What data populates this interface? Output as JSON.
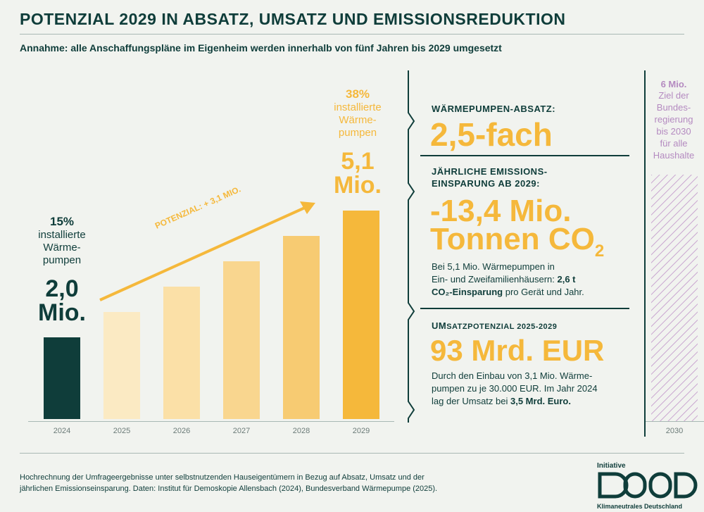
{
  "header": {
    "title": "POTENZIAL 2029 IN ABSATZ, UMSATZ UND EMISSIONSREDUKTION",
    "subtitle": "Annahme: alle Anschaffungspläne im Eigenheim werden innerhalb von fünf Jahren bis 2029 umgesetzt"
  },
  "chart_data": {
    "type": "bar",
    "categories": [
      "2024",
      "2025",
      "2026",
      "2027",
      "2028",
      "2029"
    ],
    "values": [
      2.0,
      2.62,
      3.24,
      3.86,
      4.48,
      5.1
    ],
    "unit": "Mio.",
    "ylim": [
      0,
      5.1
    ],
    "target_category": "2030",
    "target_value": 6,
    "arrow_label": "POTENZIAL: + 3,1 MIO.",
    "start_annotation": {
      "pct": "15%",
      "desc_lines": [
        "installierte",
        "Wärme-",
        "pumpen"
      ],
      "value": "2,0",
      "unit": "Mio."
    },
    "end_annotation": {
      "pct": "38%",
      "desc_lines": [
        "installierte",
        "Wärme-",
        "pumpen"
      ],
      "value": "5,1",
      "unit": "Mio."
    },
    "target_annotation": {
      "value": "6 Mio.",
      "desc_lines": [
        "Ziel der",
        "Bundes-",
        "regierung",
        "bis 2030",
        "für alle",
        "Haushalte"
      ]
    },
    "colors": {
      "bar_2024": "#0f3d3a",
      "bars_gradient": [
        "#fbeac3",
        "#fbe0a7",
        "#f9d68f",
        "#f7cb72",
        "#f5b83b"
      ],
      "target_hatch": "#c9a6d0",
      "target_text": "#b48ac0"
    }
  },
  "side": {
    "absatz": {
      "head": "WÄRMEPUMPEN-ABSATZ:",
      "value": "2,5-fach"
    },
    "emission": {
      "head_lines": [
        "JÄHRLICHE EMISSIONS-",
        "EINSPARUNG AB 2029:"
      ],
      "value_line1": "-13,4 Mio.",
      "value_line2": "Tonnen CO",
      "value_sub": "2",
      "text_line1": "Bei 5,1 Mio. Wärmepumpen in",
      "text_line2_pre": "Ein- und Zweifamilienhäusern: ",
      "text_line2_bold": "2,6 t",
      "text_line3_bold": "CO₂-Einsparung",
      "text_line3_post": " pro Gerät und Jahr."
    },
    "umsatz": {
      "head_pre": "UM",
      "head_post": "SATZPOTENZIAL 2025-2029",
      "value": "93 Mrd. EUR",
      "text_line1": "Durch den Einbau von 3,1 Mio. Wärme-",
      "text_line2": "pumpen zu je 30.000 EUR. Im Jahr 2024",
      "text_line3_pre": "lag der Umsatz bei ",
      "text_line3_bold": "3,5 Mrd. Euro."
    }
  },
  "footer": {
    "line1": "Hochrechnung der Umfrageergebnisse unter selbstnutzenden Hauseigentümern in Bezug auf Absatz, Umsatz und der",
    "line2": "jährlichen Emissionseinsparung. Daten: Institut für Demoskopie Allensbach (2024), Bundesverband Wärmepumpe (2025)."
  },
  "logo": {
    "top": "Initiative",
    "bottom": "Klimaneutrales Deutschland"
  }
}
